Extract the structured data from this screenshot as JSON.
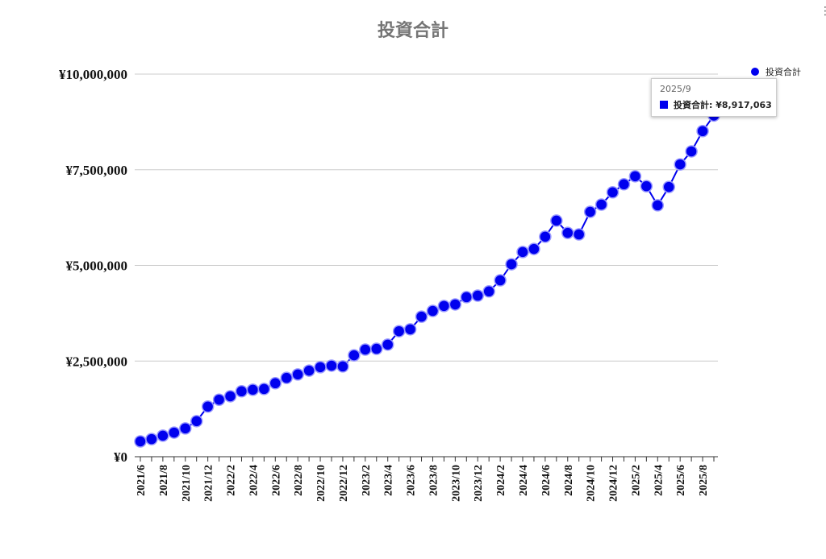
{
  "chart_data": {
    "type": "line",
    "title": "投資合計",
    "categories": [
      "2021/6",
      null,
      "2021/8",
      null,
      "2021/10",
      null,
      "2021/12",
      null,
      "2022/2",
      null,
      "2022/4",
      null,
      "2022/6",
      null,
      "2022/8",
      null,
      "2022/10",
      null,
      "2022/12",
      null,
      "2023/2",
      null,
      "2023/4",
      null,
      "2023/6",
      null,
      "2023/8",
      null,
      "2023/10",
      null,
      "2023/12",
      null,
      "2024/2",
      null,
      "2024/4",
      null,
      "2024/6",
      null,
      "2024/8",
      null,
      "2024/10",
      null,
      "2024/12",
      null,
      "2025/2",
      null,
      "2025/4",
      null,
      "2025/6",
      null,
      "2025/8",
      null
    ],
    "series": [
      {
        "name": "投資合計",
        "color": "#0000ee",
        "values": [
          400000,
          460000,
          550000,
          630000,
          740000,
          930000,
          1310000,
          1490000,
          1580000,
          1710000,
          1750000,
          1770000,
          1920000,
          2060000,
          2150000,
          2250000,
          2340000,
          2380000,
          2360000,
          2650000,
          2800000,
          2820000,
          2930000,
          3280000,
          3330000,
          3660000,
          3810000,
          3940000,
          3980000,
          4170000,
          4210000,
          4320000,
          4610000,
          5030000,
          5350000,
          5430000,
          5750000,
          6170000,
          5850000,
          5810000,
          6400000,
          6590000,
          6910000,
          7120000,
          7330000,
          7070000,
          6570000,
          7050000,
          7640000,
          7980000,
          8510000,
          8917063
        ]
      }
    ],
    "ylim": [
      0,
      10000000
    ],
    "yticks": [
      {
        "value": 0,
        "label": "¥0"
      },
      {
        "value": 2500000,
        "label": "¥2,500,000"
      },
      {
        "value": 5000000,
        "label": "¥5,000,000"
      },
      {
        "value": 7500000,
        "label": "¥7,500,000"
      },
      {
        "value": 10000000,
        "label": "¥10,000,000"
      }
    ],
    "grid": true,
    "legend": "top-right",
    "tooltip": {
      "title": "2025/9",
      "text": "投資合計: ¥8,917,063"
    }
  }
}
